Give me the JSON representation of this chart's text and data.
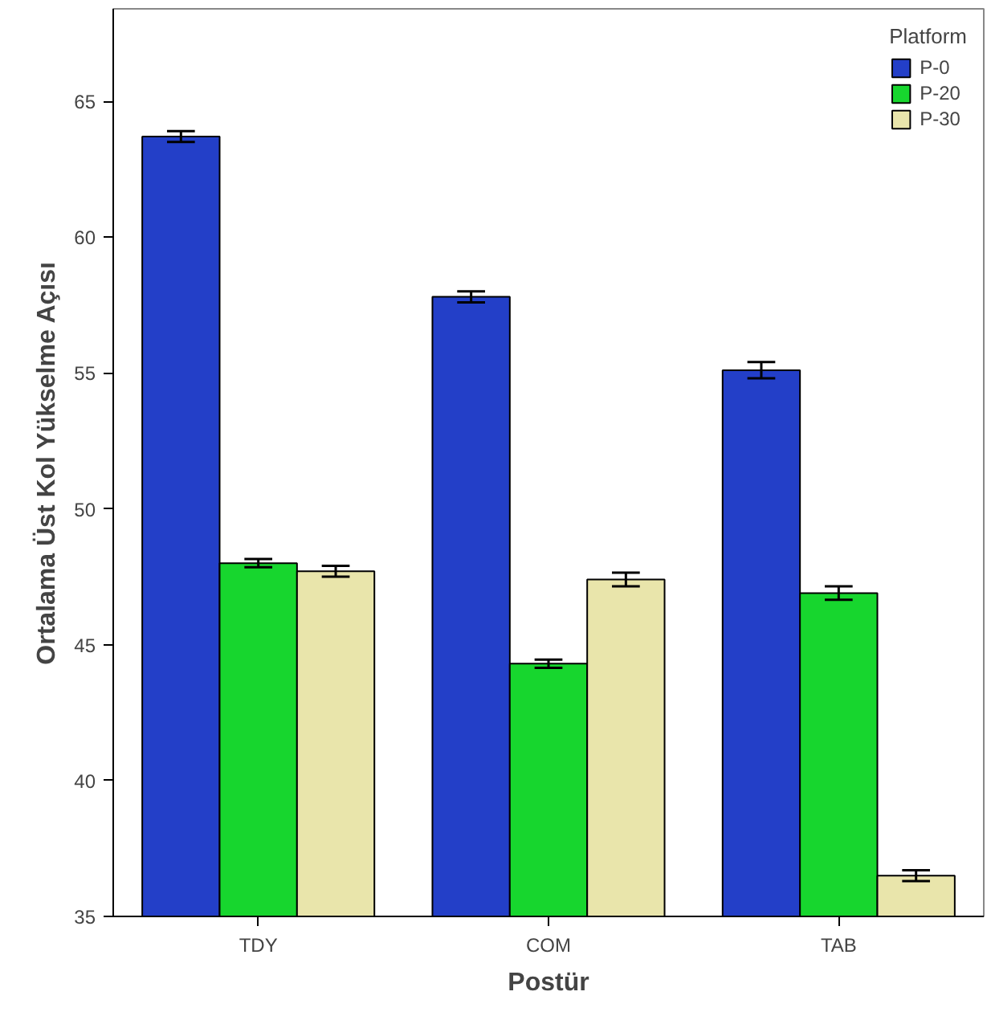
{
  "chart_data": {
    "type": "bar",
    "xlabel": "Postür",
    "ylabel": "Ortalama Üst Kol Yükselme Açısı",
    "legend_title": "Platform",
    "categories": [
      "TDY",
      "COM",
      "TAB"
    ],
    "series": [
      {
        "name": "P-0",
        "color": "#233fc8",
        "values": [
          63.7,
          57.8,
          55.1
        ],
        "errors": [
          0.2,
          0.2,
          0.3
        ]
      },
      {
        "name": "P-20",
        "color": "#17d62e",
        "values": [
          48.0,
          44.3,
          46.9
        ],
        "errors": [
          0.15,
          0.15,
          0.25
        ]
      },
      {
        "name": "P-30",
        "color": "#e9e5ab",
        "values": [
          47.7,
          47.4,
          36.5
        ],
        "errors": [
          0.2,
          0.25,
          0.2
        ]
      }
    ],
    "ylim": [
      35,
      68.4
    ],
    "yticks": [
      35,
      40,
      45,
      50,
      55,
      60,
      65
    ],
    "grid": false,
    "legend": "top right"
  }
}
